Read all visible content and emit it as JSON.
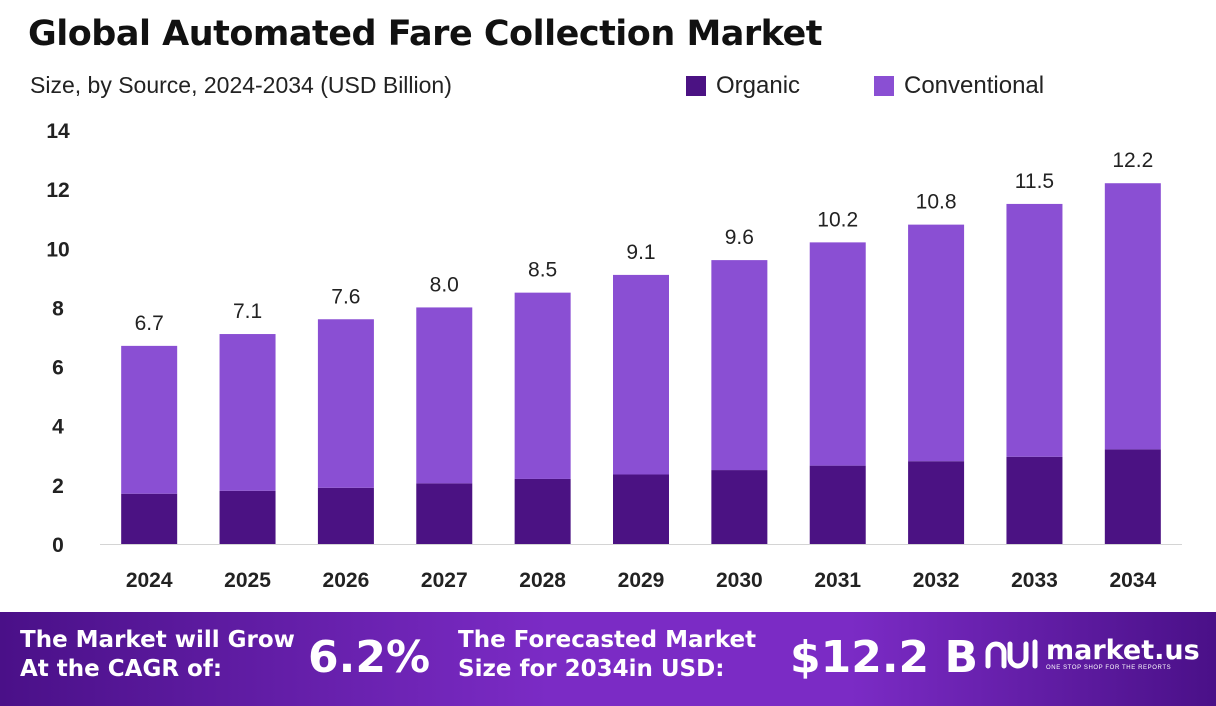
{
  "title": "Global Automated Fare Collection Market",
  "subtitle": "Size, by Source, 2024-2034 (USD Billion)",
  "legend": [
    {
      "label": "Organic",
      "color": "#4b1283"
    },
    {
      "label": "Conventional",
      "color": "#8a4fd3"
    }
  ],
  "chart_data": {
    "type": "bar",
    "stacked": true,
    "title": "Global Automated Fare Collection Market",
    "subtitle": "Size, by Source, 2024-2034 (USD Billion)",
    "categories": [
      "2024",
      "2025",
      "2026",
      "2027",
      "2028",
      "2029",
      "2030",
      "2031",
      "2032",
      "2033",
      "2034"
    ],
    "series": [
      {
        "name": "Organic",
        "color": "#4b1283",
        "values": [
          1.7,
          1.8,
          1.9,
          2.05,
          2.2,
          2.35,
          2.5,
          2.65,
          2.8,
          2.95,
          3.2
        ]
      },
      {
        "name": "Conventional",
        "color": "#8a4fd3",
        "values": [
          5.0,
          5.3,
          5.7,
          5.95,
          6.3,
          6.75,
          7.1,
          7.55,
          8.0,
          8.55,
          9.0
        ]
      }
    ],
    "totals": [
      "6.7",
      "7.1",
      "7.6",
      "8.0",
      "8.5",
      "9.1",
      "9.6",
      "10.2",
      "10.8",
      "11.5",
      "12.2"
    ],
    "yticks": [
      "0",
      "2",
      "4",
      "6",
      "8",
      "10",
      "12",
      "14"
    ],
    "ylim": [
      0,
      14
    ],
    "xlabel": "",
    "ylabel": "",
    "grid": false,
    "legend_position": "top-right"
  },
  "footer": {
    "cagr_line1": "The Market will Grow",
    "cagr_line2": "At the CAGR of:",
    "cagr_value": "6.2%",
    "forecast_line1": "The Forecasted Market",
    "forecast_line2": "Size for 2034in USD:",
    "forecast_value": "$12.2 B",
    "brand_name": "market.us",
    "brand_tagline": "ONE STOP SHOP FOR THE REPORTS"
  }
}
